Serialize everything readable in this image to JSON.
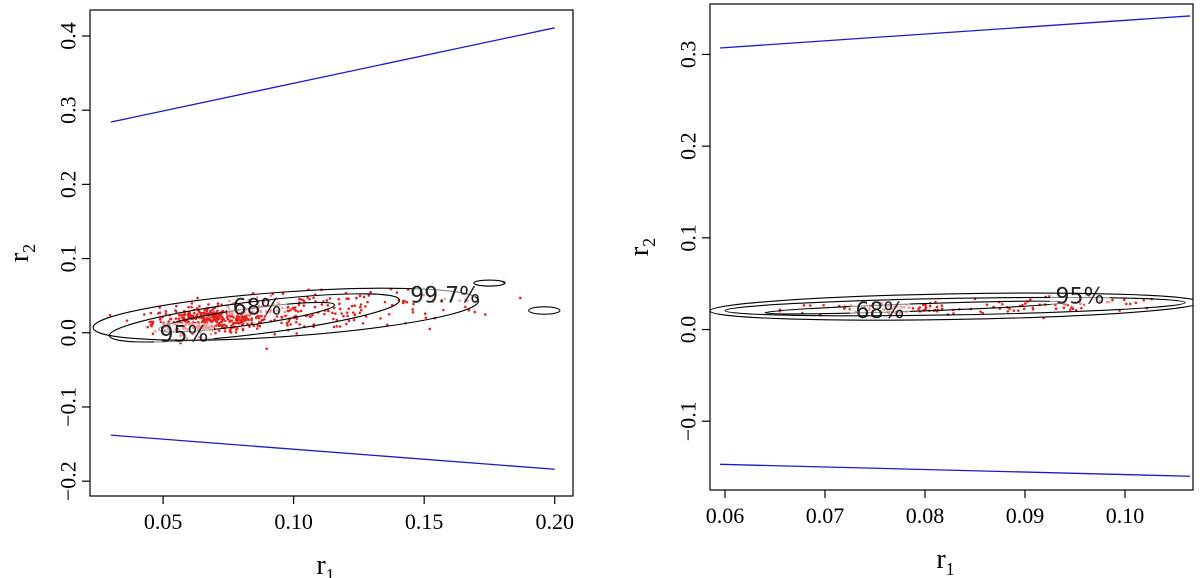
{
  "colors": {
    "points": "#e8211b",
    "bounds": "#1a1acc",
    "contour": "#000000"
  },
  "chart_data": [
    {
      "type": "scatter",
      "xlabel": "r",
      "xlabel_sub": "1",
      "ylabel": "r",
      "ylabel_sub": "2",
      "xlim": [
        0.022,
        0.207
      ],
      "ylim": [
        -0.22,
        0.435
      ],
      "xticks": [
        0.05,
        0.1,
        0.15,
        0.2
      ],
      "xtick_labels": [
        "0.05",
        "0.10",
        "0.15",
        "0.20"
      ],
      "yticks": [
        -0.2,
        -0.1,
        0.0,
        0.1,
        0.2,
        0.3,
        0.4
      ],
      "ytick_labels": [
        "−0.2",
        "−0.1",
        "0.0",
        "0.1",
        "0.2",
        "0.3",
        "0.4"
      ],
      "bound_lines": [
        {
          "name": "upper",
          "x": [
            0.03,
            0.2
          ],
          "y": [
            0.284,
            0.411
          ]
        },
        {
          "name": "lower",
          "x": [
            0.03,
            0.2
          ],
          "y": [
            -0.138,
            -0.184
          ]
        }
      ],
      "contours": [
        {
          "label": "68%",
          "label_x": 0.086,
          "label_y": 0.033,
          "cx": 0.082,
          "cy": 0.021,
          "rx": 0.034,
          "ry": 0.011,
          "angle": 8
        },
        {
          "label": "95%",
          "label_x": 0.058,
          "label_y": -0.004,
          "cx": 0.085,
          "cy": 0.02,
          "rx": 0.056,
          "ry": 0.022,
          "angle": 7
        },
        {
          "label": "99.7%",
          "label_x": 0.158,
          "label_y": 0.049,
          "cx": 0.097,
          "cy": 0.025,
          "rx": 0.074,
          "ry": 0.03,
          "angle": 4
        },
        {
          "label": "",
          "cx": 0.175,
          "cy": 0.067,
          "rx": 0.006,
          "ry": 0.004,
          "angle": 0
        },
        {
          "label": "",
          "cx": 0.196,
          "cy": 0.03,
          "rx": 0.006,
          "ry": 0.005,
          "angle": 0
        }
      ],
      "scatter_clouds": [
        {
          "cx": 0.068,
          "cy": 0.018,
          "sx": 0.011,
          "sy": 0.009,
          "n": 380
        },
        {
          "cx": 0.1,
          "cy": 0.028,
          "sx": 0.018,
          "sy": 0.012,
          "n": 160
        },
        {
          "cx": 0.14,
          "cy": 0.035,
          "sx": 0.02,
          "sy": 0.014,
          "n": 45
        }
      ]
    },
    {
      "type": "scatter",
      "xlabel": "r",
      "xlabel_sub": "1",
      "ylabel": "r",
      "ylabel_sub": "2",
      "xlim": [
        0.0585,
        0.1068
      ],
      "ylim": [
        -0.175,
        0.355
      ],
      "xticks": [
        0.06,
        0.07,
        0.08,
        0.09,
        0.1
      ],
      "xtick_labels": [
        "0.06",
        "0.07",
        "0.08",
        "0.09",
        "0.10"
      ],
      "yticks": [
        -0.1,
        0.0,
        0.1,
        0.2,
        0.3
      ],
      "ytick_labels": [
        "−0.1",
        "0.0",
        "0.1",
        "0.2",
        "0.3"
      ],
      "bound_lines": [
        {
          "name": "upper",
          "x": [
            0.0595,
            0.1065
          ],
          "y": [
            0.307,
            0.342
          ]
        },
        {
          "name": "lower",
          "x": [
            0.0595,
            0.1065
          ],
          "y": [
            -0.147,
            -0.16
          ]
        }
      ],
      "contours": [
        {
          "label": "68%",
          "label_x": 0.0755,
          "label_y": 0.019,
          "cx": 0.079,
          "cy": 0.024,
          "rx": 0.015,
          "ry": 0.004,
          "angle": 2
        },
        {
          "label": "95%",
          "label_x": 0.0955,
          "label_y": 0.035,
          "cx": 0.083,
          "cy": 0.025,
          "rx": 0.023,
          "ry": 0.009,
          "angle": 1
        },
        {
          "label": "",
          "cx": 0.083,
          "cy": 0.025,
          "rx": 0.0245,
          "ry": 0.014,
          "angle": 1
        }
      ],
      "scatter_clouds": [
        {
          "cx": 0.078,
          "cy": 0.023,
          "sx": 0.006,
          "sy": 0.004,
          "n": 70
        },
        {
          "cx": 0.093,
          "cy": 0.027,
          "sx": 0.006,
          "sy": 0.005,
          "n": 55
        }
      ]
    }
  ]
}
